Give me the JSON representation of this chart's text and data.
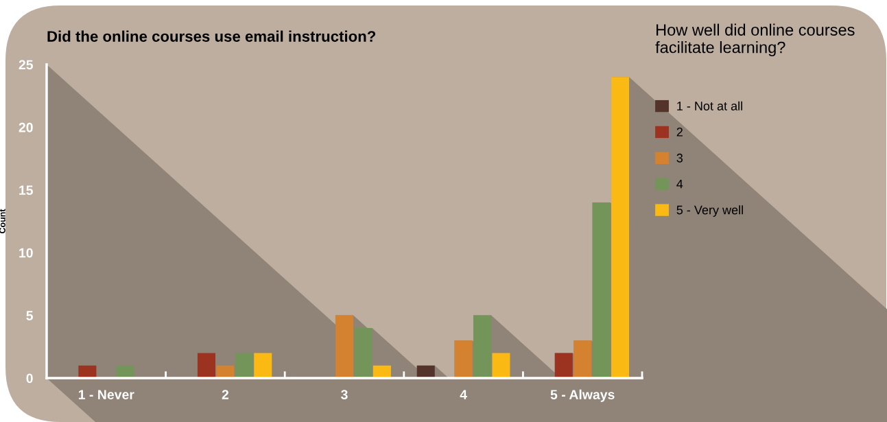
{
  "chart_data": {
    "type": "bar",
    "title": "Did the online courses use email instruction?",
    "ylabel": "Count",
    "legend_title": "How well did online courses\nfacilitate learning?",
    "categories": [
      "1 - Never",
      "2",
      "3",
      "4",
      "5 - Always"
    ],
    "series": [
      {
        "name": "1 - Not at all",
        "color": "#54342a",
        "values": [
          0,
          0,
          0,
          1,
          0
        ]
      },
      {
        "name": "2",
        "color": "#9c3220",
        "values": [
          1,
          2,
          0,
          0,
          2
        ]
      },
      {
        "name": "3",
        "color": "#d4822f",
        "values": [
          0,
          1,
          5,
          3,
          3
        ]
      },
      {
        "name": "4",
        "color": "#73955a",
        "values": [
          1,
          2,
          4,
          5,
          14
        ]
      },
      {
        "name": "5 - Very well",
        "color": "#fbb914",
        "values": [
          0,
          2,
          1,
          2,
          24
        ]
      }
    ],
    "ylim": [
      0,
      25
    ],
    "yticks": [
      0,
      5,
      10,
      15,
      20,
      25
    ],
    "grid": false,
    "legend": "right"
  }
}
